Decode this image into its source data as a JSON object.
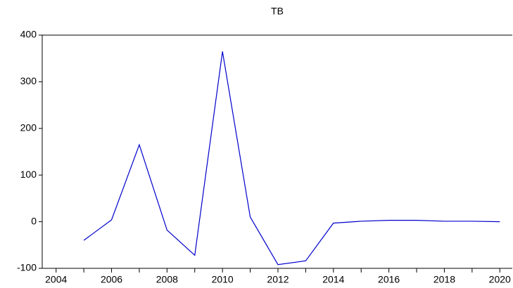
{
  "chart_data": {
    "type": "line",
    "title": "TB",
    "x": [
      2005,
      2006,
      2007,
      2008,
      2009,
      2010,
      2011,
      2012,
      2013,
      2014,
      2015,
      2016,
      2017,
      2018,
      2019,
      2020
    ],
    "series": [
      {
        "name": "TB",
        "color": "#0000cc",
        "values": [
          -40,
          4,
          165,
          -18,
          -72,
          365,
          10,
          -92,
          -84,
          -3,
          1,
          3,
          3,
          1,
          1,
          0
        ]
      }
    ],
    "xlim": [
      2003.5,
      2020.45
    ],
    "xticks": [
      2004,
      2006,
      2008,
      2010,
      2012,
      2014,
      2016,
      2018,
      2020
    ],
    "ylim": [
      -100,
      400
    ],
    "yticks": [
      -100,
      0,
      100,
      200,
      300,
      400
    ]
  }
}
